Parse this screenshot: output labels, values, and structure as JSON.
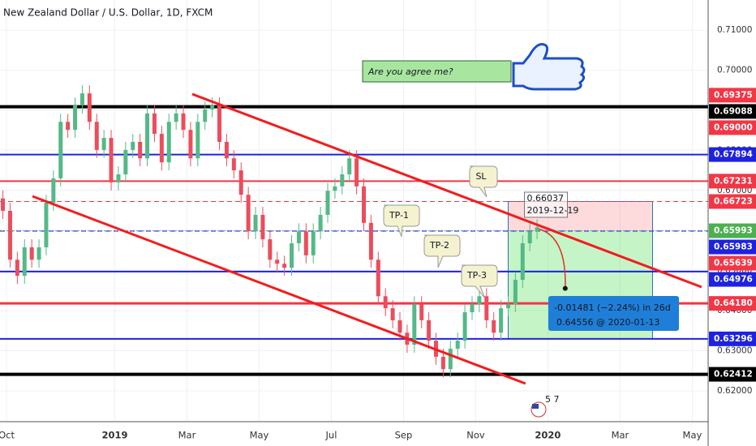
{
  "chart_data": {
    "type": "candlestick",
    "title": "New Zealand Dollar / U.S. Dollar, 1D, FXCM",
    "x": [
      -0.1,
      0.1,
      0.3,
      0.5,
      0.7,
      0.9,
      1.1,
      1.3,
      1.5,
      1.7,
      1.9,
      2.1,
      2.3,
      2.5,
      2.7,
      2.9,
      3.1,
      3.3,
      3.5,
      3.7,
      3.9,
      4.1,
      4.3,
      4.5,
      4.7,
      4.9,
      5.1,
      5.3,
      5.5,
      5.7,
      5.9,
      6.1,
      6.3,
      6.5,
      6.7,
      6.9,
      7.1,
      7.3,
      7.5,
      7.7,
      7.9,
      8.1,
      8.3,
      8.5,
      8.7,
      8.9,
      9.1,
      9.3,
      9.5,
      9.7,
      9.9,
      10.1,
      10.3,
      10.5,
      10.7,
      10.9,
      11.1,
      11.3,
      11.5,
      11.7,
      11.9,
      12.1,
      12.3,
      12.5,
      12.7,
      12.9,
      13.1,
      13.3,
      13.5,
      13.7,
      13.9,
      14.1,
      14.3,
      14.5,
      14.7
    ],
    "open": [
      0.668,
      0.6649,
      0.6527,
      0.6487,
      0.6558,
      0.6527,
      0.6558,
      0.6669,
      0.673,
      0.6871,
      0.6851,
      0.6912,
      0.6942,
      0.6871,
      0.6801,
      0.6831,
      0.672,
      0.674,
      0.6801,
      0.6821,
      0.678,
      0.6892,
      0.6841,
      0.677,
      0.6871,
      0.6892,
      0.6851,
      0.678,
      0.6871,
      0.6902,
      0.6912,
      0.6821,
      0.678,
      0.675,
      0.6689,
      0.6598,
      0.6639,
      0.6578,
      0.6527,
      0.6517,
      0.6507,
      0.6568,
      0.6598,
      0.6538,
      0.6598,
      0.6639,
      0.6699,
      0.671,
      0.674,
      0.678,
      0.671,
      0.6619,
      0.6527,
      0.6436,
      0.6406,
      0.6376,
      0.6345,
      0.6315,
      0.6416,
      0.6376,
      0.6325,
      0.6285,
      0.6254,
      0.6305,
      0.6325,
      0.6396,
      0.6416,
      0.6436,
      0.6376,
      0.6345,
      0.6406,
      0.6416,
      0.6477,
      0.6568,
      0.6598
    ],
    "high": [
      0.67,
      0.6669,
      0.6547,
      0.6578,
      0.6578,
      0.6578,
      0.6689,
      0.675,
      0.6891,
      0.6891,
      0.6932,
      0.6962,
      0.6962,
      0.6891,
      0.6851,
      0.6851,
      0.676,
      0.6821,
      0.6841,
      0.6841,
      0.6912,
      0.6912,
      0.6861,
      0.6891,
      0.6912,
      0.6912,
      0.6871,
      0.6891,
      0.6922,
      0.6932,
      0.6932,
      0.6841,
      0.68,
      0.677,
      0.6709,
      0.6659,
      0.6659,
      0.6598,
      0.6547,
      0.6537,
      0.6588,
      0.6618,
      0.6618,
      0.6618,
      0.6659,
      0.6719,
      0.673,
      0.676,
      0.68,
      0.68,
      0.673,
      0.6639,
      0.6547,
      0.6456,
      0.6426,
      0.6396,
      0.6365,
      0.6436,
      0.6436,
      0.6396,
      0.6345,
      0.6305,
      0.6325,
      0.6345,
      0.6416,
      0.6436,
      0.6456,
      0.6456,
      0.6396,
      0.6426,
      0.6436,
      0.6497,
      0.6588,
      0.6618,
      0.6628
    ],
    "low": [
      0.6629,
      0.6507,
      0.6467,
      0.6467,
      0.6507,
      0.6507,
      0.6538,
      0.6649,
      0.671,
      0.6831,
      0.6831,
      0.6892,
      0.6851,
      0.6781,
      0.6781,
      0.67,
      0.67,
      0.672,
      0.6781,
      0.676,
      0.676,
      0.6821,
      0.675,
      0.675,
      0.6851,
      0.6831,
      0.676,
      0.676,
      0.6851,
      0.6882,
      0.6801,
      0.676,
      0.673,
      0.6669,
      0.6578,
      0.6578,
      0.6558,
      0.6507,
      0.6497,
      0.6487,
      0.6487,
      0.6548,
      0.6518,
      0.6518,
      0.6578,
      0.6619,
      0.6679,
      0.669,
      0.672,
      0.669,
      0.6599,
      0.6507,
      0.6416,
      0.6386,
      0.6356,
      0.6325,
      0.6295,
      0.6295,
      0.6356,
      0.6305,
      0.6265,
      0.6234,
      0.6234,
      0.6285,
      0.6305,
      0.6376,
      0.6396,
      0.6356,
      0.6325,
      0.6325,
      0.6386,
      0.6396,
      0.6457,
      0.6548,
      0.6578
    ],
    "close": [
      0.6649,
      0.6527,
      0.6487,
      0.6558,
      0.6527,
      0.6558,
      0.6669,
      0.673,
      0.6871,
      0.6851,
      0.6912,
      0.6942,
      0.6871,
      0.6801,
      0.6831,
      0.672,
      0.674,
      0.6801,
      0.6821,
      0.678,
      0.6892,
      0.6841,
      0.677,
      0.6871,
      0.6892,
      0.6851,
      0.678,
      0.6871,
      0.6902,
      0.6912,
      0.6821,
      0.678,
      0.675,
      0.6689,
      0.6598,
      0.6639,
      0.6578,
      0.6527,
      0.6517,
      0.6507,
      0.6568,
      0.6598,
      0.6538,
      0.6598,
      0.6639,
      0.6699,
      0.671,
      0.674,
      0.678,
      0.671,
      0.6619,
      0.6527,
      0.6436,
      0.6406,
      0.6376,
      0.6345,
      0.6315,
      0.6416,
      0.6376,
      0.6325,
      0.6285,
      0.6254,
      0.6305,
      0.6325,
      0.6396,
      0.6416,
      0.6436,
      0.6376,
      0.6345,
      0.6406,
      0.6416,
      0.6477,
      0.6568,
      0.6598,
      0.6608
    ],
    "up_color": "#53b987",
    "down_color": "#eb4d5c",
    "xlim": [
      -0.18,
      19.44
    ],
    "xticks": [
      {
        "value": 0,
        "label": "Oct"
      },
      {
        "value": 3,
        "label": "2019"
      },
      {
        "value": 5,
        "label": "Mar"
      },
      {
        "value": 7,
        "label": "May"
      },
      {
        "value": 9,
        "label": "Jul"
      },
      {
        "value": 11,
        "label": "Sep"
      },
      {
        "value": 13,
        "label": "Nov"
      },
      {
        "value": 15,
        "label": "2020"
      },
      {
        "value": 17,
        "label": "Mar"
      },
      {
        "value": 19,
        "label": "May"
      }
    ],
    "ylim": [
      0.6123,
      0.7175
    ],
    "yticks": [
      {
        "value": 0.62,
        "label": "0.62000"
      },
      {
        "value": 0.63,
        "label": "0.63000"
      },
      {
        "value": 0.64,
        "label": "0.64000"
      },
      {
        "value": 0.65,
        "label": "0.65000"
      },
      {
        "value": 0.66,
        "label": "0.66000"
      },
      {
        "value": 0.67,
        "label": "0.67000"
      },
      {
        "value": 0.68,
        "label": "0.68000"
      },
      {
        "value": 0.69,
        "label": "0.69000"
      },
      {
        "value": 0.7,
        "label": "0.70000"
      },
      {
        "value": 0.71,
        "label": "0.71000"
      }
    ],
    "grid": true,
    "levels": [
      {
        "value": 0.69375,
        "color": "#f23645",
        "style": "none"
      },
      {
        "value": 0.69088,
        "color": "#000000",
        "style": "solid",
        "width": 4
      },
      {
        "value": 0.69,
        "label": "0.69000",
        "color": "#f23645",
        "style": "none"
      },
      {
        "value": 0.67894,
        "color": "#1e22e0",
        "style": "solid",
        "width": 2
      },
      {
        "value": 0.67231,
        "color": "#f23645",
        "style": "solid",
        "width": 2
      },
      {
        "value": 0.66723,
        "color": "#f23645",
        "style": "dashed",
        "width": 1
      },
      {
        "value": 0.65993,
        "color": "#4caf50",
        "style": "dotted",
        "width": 1
      },
      {
        "value": 0.65983,
        "color": "#1e22e0",
        "style": "dashed",
        "width": 1
      },
      {
        "value": 0.65639,
        "color": "#f23645",
        "style": "none"
      },
      {
        "value": 0.64976,
        "color": "#1e22e0",
        "style": "solid",
        "width": 2
      },
      {
        "value": 0.6418,
        "label": "0.64180",
        "color": "#f23645",
        "style": "solid",
        "width": 3
      },
      {
        "value": 0.63296,
        "color": "#1e22e0",
        "style": "solid",
        "width": 2
      },
      {
        "value": 0.62412,
        "color": "#000000",
        "style": "solid",
        "width": 4
      }
    ],
    "trendlines": [
      {
        "x": [
          5.146,
          19.26
        ],
        "y": [
          0.69403,
          0.64588
        ],
        "color": "#f21d1d"
      },
      {
        "x": [
          0.719,
          14.38
        ],
        "y": [
          0.66854,
          0.62181
        ],
        "color": "#f21d1d"
      }
    ],
    "position": {
      "x": [
        13.9,
        17.9
      ],
      "entry": 0.65993,
      "stop": 0.66723,
      "target": 0.63296
    },
    "projection": {
      "x": [
        14.75,
        15.48
      ],
      "y": [
        0.66037,
        0.64556
      ],
      "start_label": "2019-12-19",
      "change_label": "-0.01481 (−2.24%) in 26d",
      "end_label": "0.64556 @ 2020-01-13"
    },
    "callouts": [
      "SL",
      "TP-1",
      "TP-2",
      "TP-3"
    ],
    "note": "Are you agree me?",
    "badge": "5 7"
  }
}
